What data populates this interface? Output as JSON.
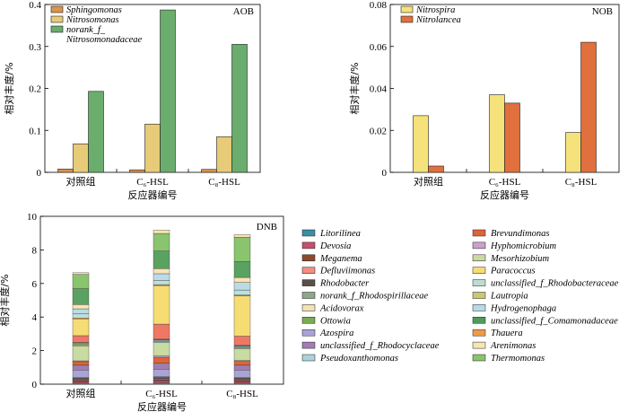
{
  "chart_data": [
    {
      "id": "aob",
      "type": "bar",
      "panel_label": "AOB",
      "xlabel": "反应器编号",
      "ylabel": "相对丰度/%",
      "categories": [
        "对照组",
        "C₆-HSL",
        "C₈-HSL"
      ],
      "ylim": [
        0,
        0.4
      ],
      "yticks": [
        0,
        0.1,
        0.2,
        0.3,
        0.4
      ],
      "ytick_labels": [
        "0",
        "0.1",
        "0.2",
        "0.3",
        "0.4"
      ],
      "legend_position": "top-left",
      "series": [
        {
          "name": "Sphingomonas",
          "color": "#d9954c",
          "values": [
            0.008,
            0.006,
            0.007
          ]
        },
        {
          "name": "Nitrosomonas",
          "color": "#e7cb78",
          "values": [
            0.068,
            0.115,
            0.085
          ]
        },
        {
          "name": "norank_f_Nitrosomonadaceae",
          "color": "#6aad6d",
          "values": [
            0.193,
            0.387,
            0.305
          ]
        }
      ]
    },
    {
      "id": "nob",
      "type": "bar",
      "panel_label": "NOB",
      "xlabel": "反应器编号",
      "ylabel": "相对丰度/%",
      "categories": [
        "对照组",
        "C₆-HSL",
        "C₈-HSL"
      ],
      "ylim": [
        0,
        0.08
      ],
      "yticks": [
        0,
        0.02,
        0.04,
        0.06,
        0.08
      ],
      "ytick_labels": [
        "0",
        "0.02",
        "0.04",
        "0.06",
        "0.08"
      ],
      "legend_position": "top-left",
      "series": [
        {
          "name": "Nitrospira",
          "color": "#f5e27a",
          "values": [
            0.027,
            0.037,
            0.019
          ]
        },
        {
          "name": "Nitrolancea",
          "color": "#e0703d",
          "values": [
            0.003,
            0.033,
            0.062
          ]
        }
      ]
    },
    {
      "id": "dnb",
      "type": "bar",
      "stacked": true,
      "panel_label": "DNB",
      "xlabel": "反应器编号",
      "ylabel": "相对丰度/%",
      "categories": [
        "对照组",
        "C₆-HSL",
        "C₈-HSL"
      ],
      "ylim": [
        0,
        10
      ],
      "yticks": [
        0,
        2,
        4,
        6,
        8,
        10
      ],
      "ytick_labels": [
        "0",
        "2",
        "4",
        "6",
        "8",
        "10"
      ],
      "legend_position": "right",
      "series": [
        {
          "name": "Litorilinea",
          "color": "#3a8fa3",
          "values": [
            0.06,
            0.08,
            0.06
          ]
        },
        {
          "name": "Devosia",
          "color": "#c44f6e",
          "values": [
            0.1,
            0.12,
            0.1
          ]
        },
        {
          "name": "Meganema",
          "color": "#8b4a2b",
          "values": [
            0.05,
            0.06,
            0.05
          ]
        },
        {
          "name": "Defluviimonas",
          "color": "#f08e80",
          "values": [
            0.05,
            0.05,
            0.05
          ]
        },
        {
          "name": "Rhodobacter",
          "color": "#5a4e4a",
          "values": [
            0.04,
            0.04,
            0.04
          ]
        },
        {
          "name": "norank_f_Rhodospirillaceae",
          "color": "#8ca88a",
          "values": [
            0.03,
            0.03,
            0.03
          ]
        },
        {
          "name": "Acidovorax",
          "color": "#f2e2b0",
          "values": [
            0.03,
            0.03,
            0.03
          ]
        },
        {
          "name": "Ottowia",
          "color": "#7aab50",
          "values": [
            0.03,
            0.03,
            0.03
          ]
        },
        {
          "name": "Azospira",
          "color": "#a9a3d6",
          "values": [
            0.45,
            0.45,
            0.45
          ]
        },
        {
          "name": "unclassified_f_Rhodocyclaceae",
          "color": "#a27cb2",
          "values": [
            0.25,
            0.3,
            0.25
          ]
        },
        {
          "name": "Pseudoxanthomonas",
          "color": "#a9d3d9",
          "values": [
            0.05,
            0.06,
            0.05
          ]
        },
        {
          "name": "Brevundimonas",
          "color": "#e0633a",
          "values": [
            0.2,
            0.35,
            0.22
          ]
        },
        {
          "name": "Hyphomicrobium",
          "color": "#c9a0cf",
          "values": [
            0.05,
            0.08,
            0.05
          ]
        },
        {
          "name": "Mesorhizobium",
          "color": "#c8dba0",
          "values": [
            0.9,
            0.8,
            0.7
          ]
        },
        {
          "name": "unclassified_f_Rhodobacteraceae",
          "color": "#bcdcd2",
          "values": [
            0.05,
            0.05,
            0.05
          ]
        },
        {
          "name": "Lautropia",
          "color": "#c7c974",
          "values": [
            0.05,
            0.05,
            0.05
          ]
        },
        {
          "name": "Hydrogenophaga",
          "color": "#b8dbe6",
          "values": [
            0.05,
            0.05,
            0.05
          ]
        },
        {
          "name": "unclassified_f_Comamonadaceae",
          "color": "#4f9a5c",
          "values": [
            0.05,
            0.05,
            0.05
          ]
        },
        {
          "name": "Defluviimonas ",
          "color": "#ee7766",
          "values": [
            0.4,
            0.9,
            0.55
          ]
        },
        {
          "name": "Paracoccus",
          "color": "#f5dd74",
          "values": [
            1.0,
            2.3,
            2.4
          ]
        },
        {
          "name": "Thauera",
          "color": "#f09a48",
          "values": [
            0.05,
            0.05,
            0.05
          ]
        },
        {
          "name": "unclassified_f_Rhodobacteraceae ",
          "color": "#bde0d8",
          "values": [
            0.25,
            0.25,
            0.3
          ]
        },
        {
          "name": "Hydrogenophaga ",
          "color": "#b9dce8",
          "values": [
            0.3,
            0.4,
            0.45
          ]
        },
        {
          "name": "Arenimonas",
          "color": "#f8e4b4",
          "values": [
            0.25,
            0.3,
            0.3
          ]
        },
        {
          "name": "unclassified_f_Comamonadaceae ",
          "color": "#5aa262",
          "values": [
            0.95,
            1.05,
            0.95
          ]
        },
        {
          "name": "Thermomonas",
          "color": "#8ac46e",
          "values": [
            0.85,
            1.05,
            1.45
          ]
        },
        {
          "name": "Arenimonas ",
          "color": "#f8e4b4",
          "values": [
            0.1,
            0.2,
            0.15
          ]
        }
      ],
      "legend": [
        {
          "name": "Litorilinea",
          "color": "#3a8fa3"
        },
        {
          "name": "Devosia",
          "color": "#c44f6e"
        },
        {
          "name": "Meganema",
          "color": "#8b4a2b"
        },
        {
          "name": "Defluviimonas",
          "color": "#f08e80"
        },
        {
          "name": "Rhodobacter",
          "color": "#5a4e4a"
        },
        {
          "name": "norank_f_Rhodospirillaceae",
          "color": "#8ca88a"
        },
        {
          "name": "Acidovorax",
          "color": "#f2e2b0"
        },
        {
          "name": "Ottowia",
          "color": "#7aab50"
        },
        {
          "name": "Azospira",
          "color": "#a9a3d6"
        },
        {
          "name": "unclassified_f_Rhodocyclaceae",
          "color": "#a27cb2"
        },
        {
          "name": "Pseudoxanthomonas",
          "color": "#a9d3d9"
        },
        {
          "name": "Brevundimonas",
          "color": "#e0633a"
        },
        {
          "name": "Hyphomicrobium",
          "color": "#c9a0cf"
        },
        {
          "name": "Mesorhizobium",
          "color": "#c8dba0"
        },
        {
          "name": "Paracoccus",
          "color": "#f5dd74"
        },
        {
          "name": "unclassified_f_Rhodobacteraceae",
          "color": "#bcdcd2"
        },
        {
          "name": "Lautropia",
          "color": "#c7c974"
        },
        {
          "name": "Hydrogenophaga",
          "color": "#b8dbe6"
        },
        {
          "name": "unclassified_f_Comamonadaceae",
          "color": "#4f9a5c"
        },
        {
          "name": "Thauera",
          "color": "#f09a48"
        },
        {
          "name": "Arenimonas",
          "color": "#f8e4b4"
        },
        {
          "name": "Thermomonas",
          "color": "#8ac46e"
        }
      ]
    }
  ]
}
